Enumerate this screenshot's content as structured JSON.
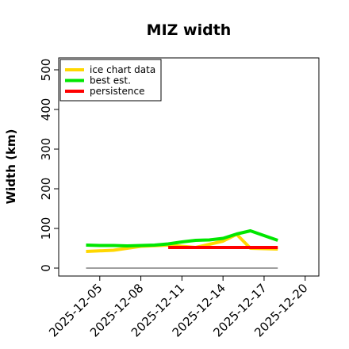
{
  "chart_data": {
    "type": "line",
    "title": "MIZ width",
    "xlabel": "",
    "ylabel": "Width (km)",
    "ylim": [
      -20,
      530
    ],
    "xlim": [
      "2025-12-02",
      "2025-12-21"
    ],
    "xticks": [
      "2025-12-05",
      "2025-12-08",
      "2025-12-11",
      "2025-12-14",
      "2025-12-17",
      "2025-12-20"
    ],
    "yticks": [
      0,
      100,
      200,
      300,
      400,
      500
    ],
    "grid": false,
    "legend_position": "top-left",
    "series": [
      {
        "name": "ice chart data",
        "color": "#FFD700",
        "x": [
          "2025-12-04",
          "2025-12-06",
          "2025-12-08",
          "2025-12-10",
          "2025-12-12",
          "2025-12-14",
          "2025-12-15",
          "2025-12-16",
          "2025-12-18"
        ],
        "y": [
          42,
          45,
          55,
          58,
          52,
          68,
          85,
          50,
          48
        ]
      },
      {
        "name": "best est.",
        "color": "#00E600",
        "x": [
          "2025-12-04",
          "2025-12-05",
          "2025-12-06",
          "2025-12-07",
          "2025-12-08",
          "2025-12-09",
          "2025-12-10",
          "2025-12-11",
          "2025-12-12",
          "2025-12-13",
          "2025-12-14",
          "2025-12-15",
          "2025-12-16",
          "2025-12-17",
          "2025-12-18"
        ],
        "y": [
          58,
          57,
          57,
          56,
          57,
          58,
          61,
          66,
          70,
          71,
          75,
          86,
          94,
          82,
          70
        ]
      },
      {
        "name": "persistence",
        "color": "#FF0000",
        "x": [
          "2025-12-10",
          "2025-12-18"
        ],
        "y": [
          52,
          52
        ]
      },
      {
        "name": "",
        "color": "#666666",
        "x": [
          "2025-12-04",
          "2025-12-18"
        ],
        "y": [
          0,
          0
        ]
      }
    ]
  }
}
